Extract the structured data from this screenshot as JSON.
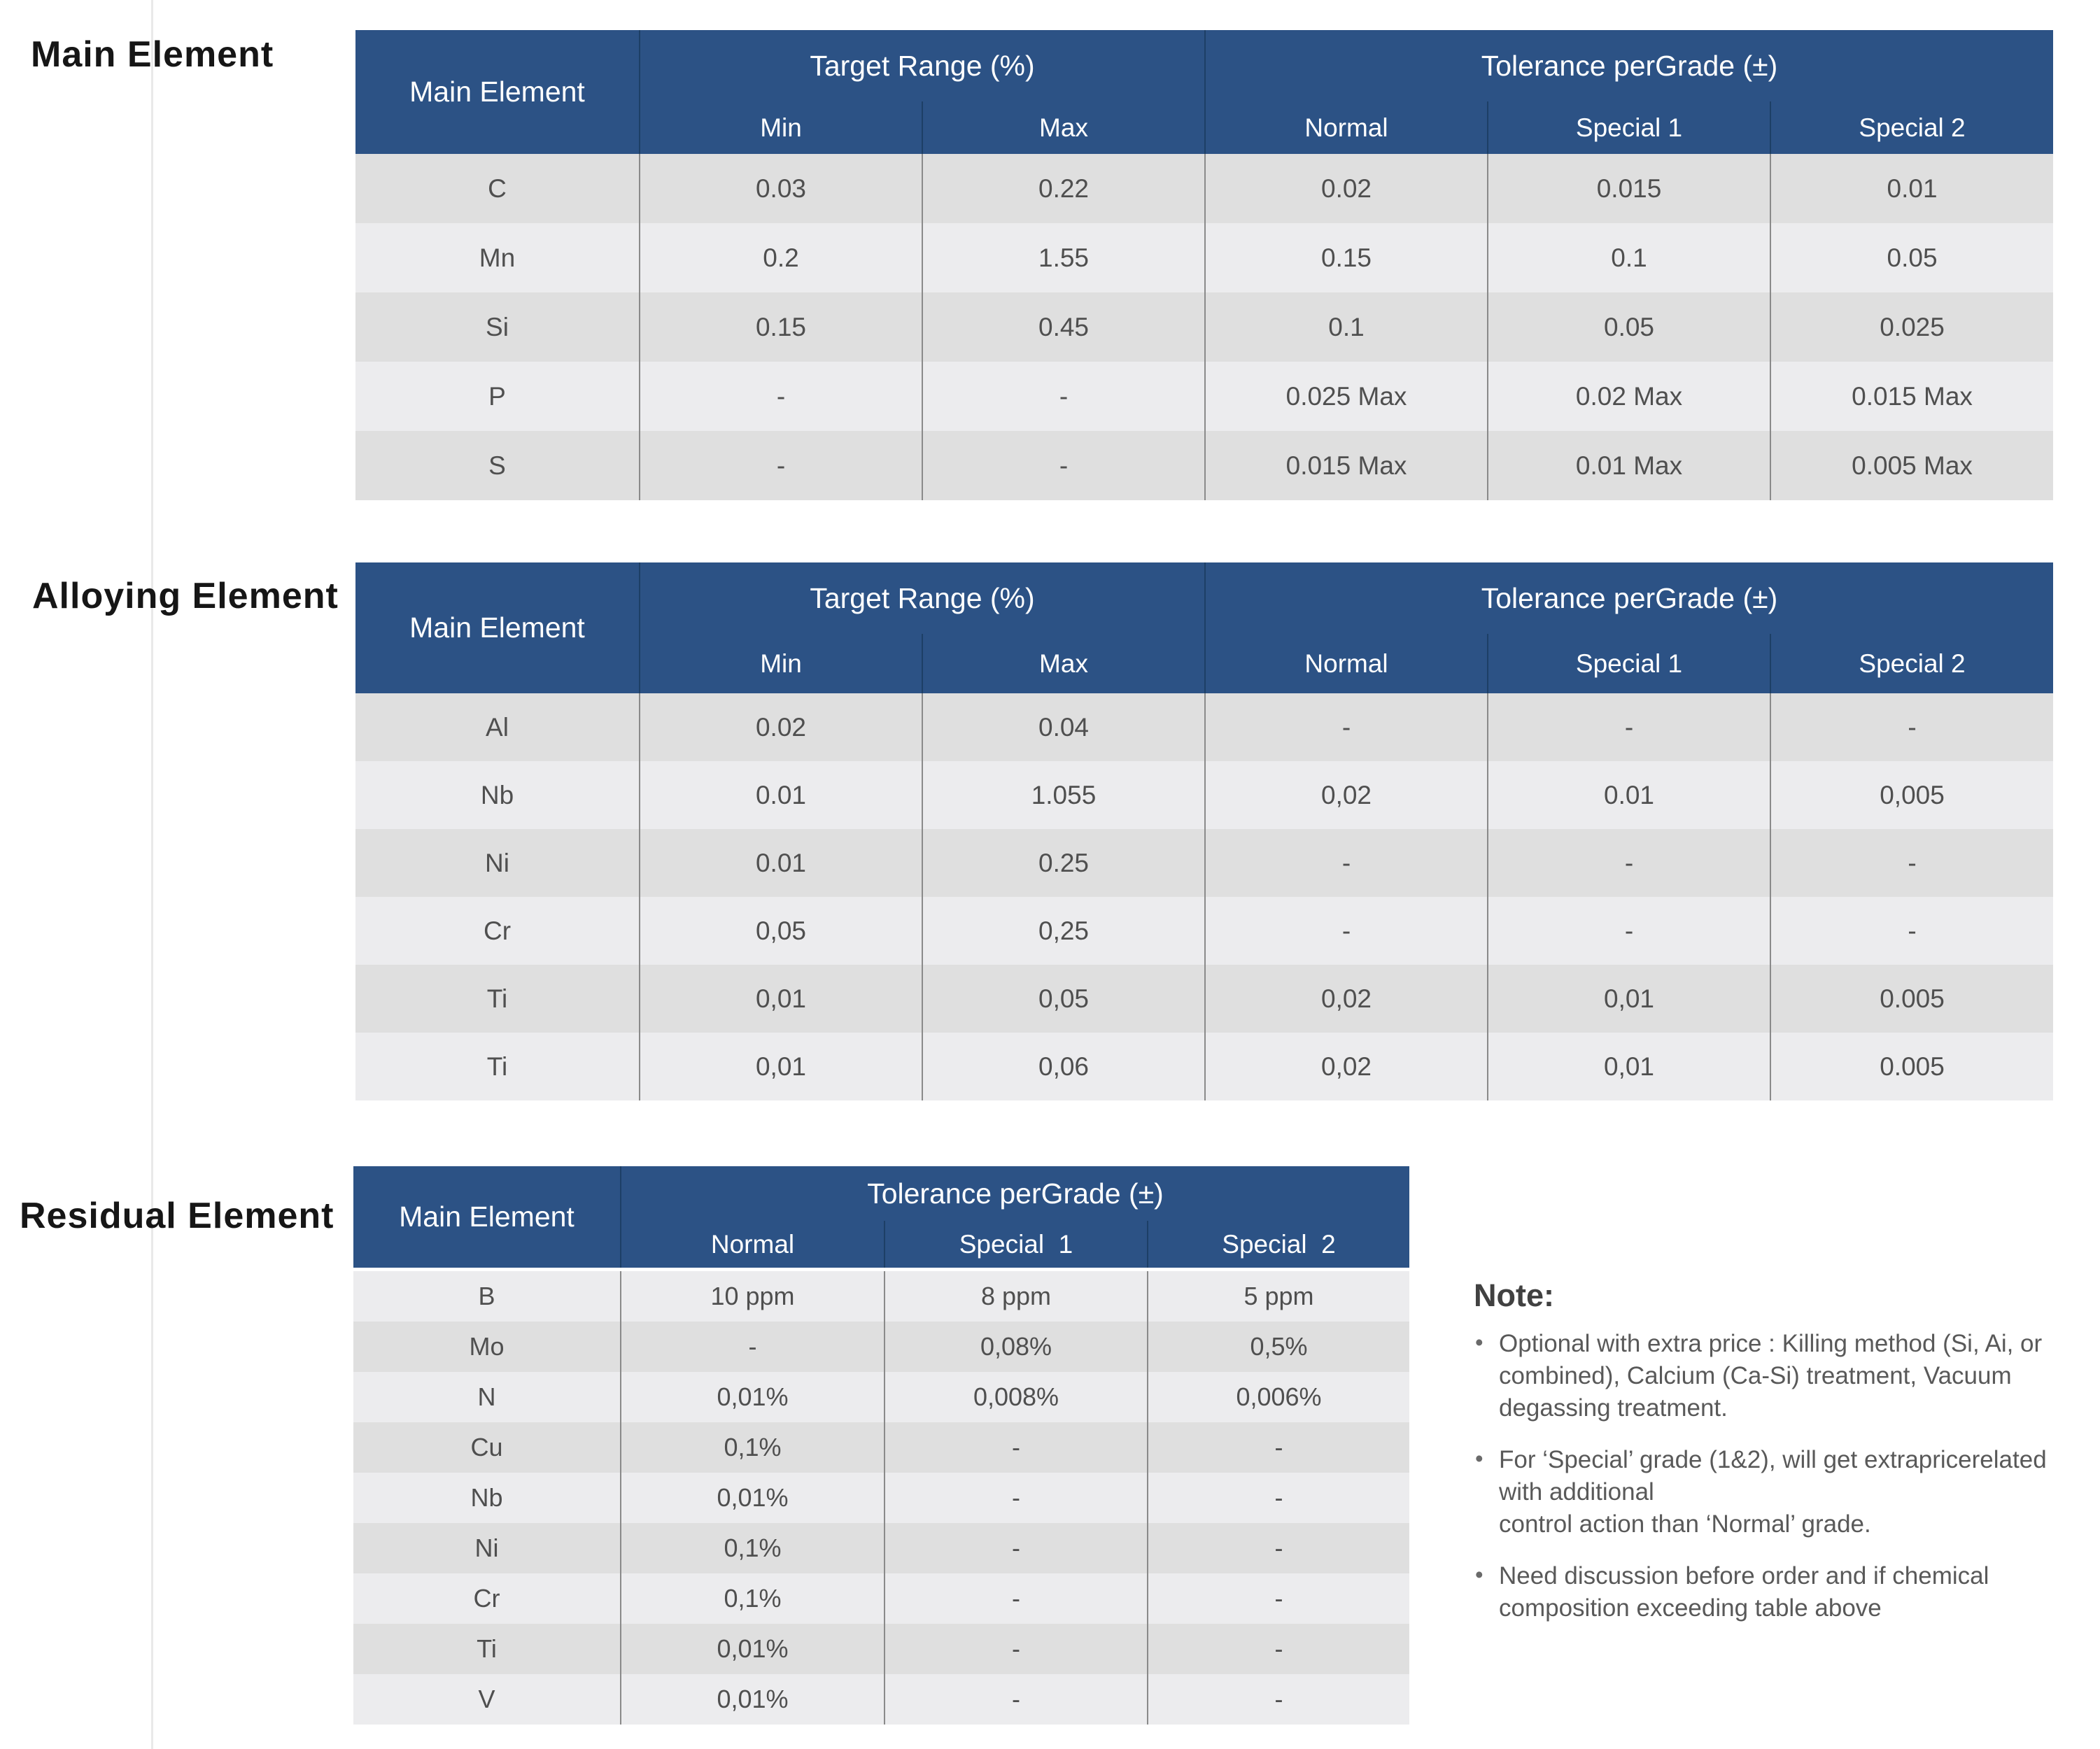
{
  "colors": {
    "header_blue": "#2c5285",
    "header_divider": "#1d3f66",
    "cell_divider": "#8a8a8a",
    "stripe_dark": "#dfdfdf",
    "stripe_light": "#ececee",
    "cell_text": "#4f4f4f",
    "header_text": "#ffffff",
    "note_text": "#595959",
    "label_text": "#161616"
  },
  "sections": [
    {
      "label": "Main Element",
      "table": {
        "corner_header": "Main Element",
        "groups": [
          {
            "label": "Target Range (%)",
            "span": 2
          },
          {
            "label": "Tolerance perGrade (±)",
            "span": 3
          }
        ],
        "sub_headers": [
          "Min",
          "Max",
          "Normal",
          "Special 1",
          "Special 2"
        ],
        "rows": [
          {
            "element": "C",
            "values": [
              "0.03",
              "0.22",
              "0.02",
              "0.015",
              "0.01"
            ]
          },
          {
            "element": "Mn",
            "values": [
              "0.2",
              "1.55",
              "0.15",
              "0.1",
              "0.05"
            ]
          },
          {
            "element": "Si",
            "values": [
              "0.15",
              "0.45",
              "0.1",
              "0.05",
              "0.025"
            ]
          },
          {
            "element": "P",
            "values": [
              "-",
              "-",
              "0.025 Max",
              "0.02 Max",
              "0.015 Max"
            ]
          },
          {
            "element": "S",
            "values": [
              "-",
              "-",
              "0.015 Max",
              "0.01 Max",
              "0.005 Max"
            ]
          }
        ]
      }
    },
    {
      "label": "Alloying Element",
      "table": {
        "corner_header": "Main Element",
        "groups": [
          {
            "label": "Target Range (%)",
            "span": 2
          },
          {
            "label": "Tolerance perGrade (±)",
            "span": 3
          }
        ],
        "sub_headers": [
          "Min",
          "Max",
          "Normal",
          "Special 1",
          "Special 2"
        ],
        "rows": [
          {
            "element": "Al",
            "values": [
              "0.02",
              "0.04",
              "-",
              "-",
              "-"
            ]
          },
          {
            "element": "Nb",
            "values": [
              "0.01",
              "1.055",
              "0,02",
              "0.01",
              "0,005"
            ]
          },
          {
            "element": "Ni",
            "values": [
              "0.01",
              "0.25",
              "-",
              "-",
              "-"
            ]
          },
          {
            "element": "Cr",
            "values": [
              "0,05",
              "0,25",
              "-",
              "-",
              "-"
            ]
          },
          {
            "element": "Ti",
            "values": [
              "0,01",
              "0,05",
              "0,02",
              "0,01",
              "0.005"
            ]
          },
          {
            "element": "Ti",
            "values": [
              "0,01",
              "0,06",
              "0,02",
              "0,01",
              "0.005"
            ]
          }
        ]
      }
    },
    {
      "label": "Residual Element",
      "table": {
        "corner_header": "Main Element",
        "groups": [
          {
            "label": "Tolerance perGrade (±)",
            "span": 3
          }
        ],
        "sub_headers": [
          "Normal",
          "Special  1",
          "Special  2"
        ],
        "rows": [
          {
            "element": "B",
            "values": [
              "10 ppm",
              "8 ppm",
              "5 ppm"
            ]
          },
          {
            "element": "Mo",
            "values": [
              "-",
              "0,08%",
              "0,5%"
            ]
          },
          {
            "element": "N",
            "values": [
              "0,01%",
              "0,008%",
              "0,006%"
            ]
          },
          {
            "element": "Cu",
            "values": [
              "0,1%",
              "-",
              "-"
            ]
          },
          {
            "element": "Nb",
            "values": [
              "0,01%",
              "-",
              "-"
            ]
          },
          {
            "element": "Ni",
            "values": [
              "0,1%",
              "-",
              "-"
            ]
          },
          {
            "element": "Cr",
            "values": [
              "0,1%",
              "-",
              "-"
            ]
          },
          {
            "element": "Ti",
            "values": [
              "0,01%",
              "-",
              "-"
            ]
          },
          {
            "element": "V",
            "values": [
              "0,01%",
              "-",
              "-"
            ]
          }
        ]
      }
    }
  ],
  "note": {
    "title": "Note:",
    "bullets": [
      "Optional with extra price : Killing method (Si, Ai, or\ncombined), Calcium (Ca-Si) treatment, Vacuum\ndegassing treatment.",
      "For ‘Special’ grade (1&2), will get extrapricerelated\nwith additional\ncontrol action than ‘Normal’ grade.",
      "Need discussion before order and if chemical\ncomposition exceeding table above"
    ]
  }
}
